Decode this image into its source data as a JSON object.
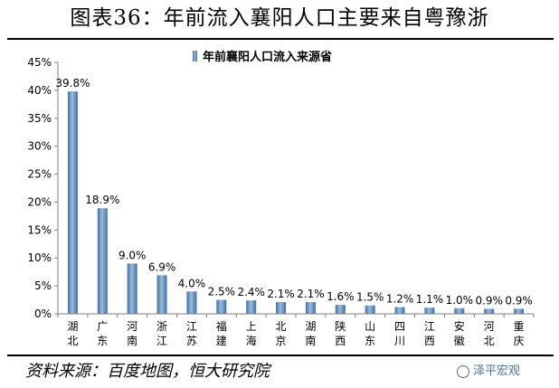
{
  "figure_title": "图表36：年前流入襄阳人口主要来自粤豫浙",
  "source": "资料来源：百度地图，恒大研究院",
  "watermark": "泽平宏观",
  "colors": {
    "bar": "#3f6fa4",
    "bar_light": "#9dbbdb",
    "axis": "#7f7f7f"
  },
  "chart_data": {
    "type": "bar",
    "title": "年前襄阳人口流入来源省",
    "legend": "年前襄阳人口流入来源省",
    "legend_position": "top-center",
    "categories": [
      "湖北",
      "广东",
      "河南",
      "浙江",
      "江苏",
      "福建",
      "上海",
      "北京",
      "湖南",
      "陕西",
      "山东",
      "四川",
      "江西",
      "安徽",
      "河北",
      "重庆"
    ],
    "values": [
      39.8,
      18.9,
      9.0,
      6.9,
      4.0,
      2.5,
      2.4,
      2.1,
      2.1,
      1.6,
      1.5,
      1.2,
      1.1,
      1.0,
      0.9,
      0.9
    ],
    "data_labels": [
      "39.8%",
      "18.9%",
      "9.0%",
      "6.9%",
      "4.0%",
      "2.5%",
      "2.4%",
      "2.1%",
      "2.1%",
      "1.6%",
      "1.5%",
      "1.2%",
      "1.1%",
      "1.0%",
      "0.9%",
      "0.9%"
    ],
    "yticks": [
      0,
      5,
      10,
      15,
      20,
      25,
      30,
      35,
      40,
      45
    ],
    "ytick_labels": [
      "0%",
      "5%",
      "10%",
      "15%",
      "20%",
      "25%",
      "30%",
      "35%",
      "40%",
      "45%"
    ],
    "ylim": [
      0,
      45
    ],
    "xlabel": "",
    "ylabel": "",
    "grid": false
  }
}
